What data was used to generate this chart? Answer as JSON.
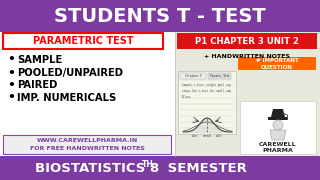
{
  "title": "STUDENTS T - TEST",
  "title_bg": "#7B3BA0",
  "title_color": "#FFFFFF",
  "parametric_label": "PARAMETRIC TEST",
  "parametric_bg": "#FFFFFF",
  "parametric_border": "#FF0000",
  "parametric_text_color": "#FF0000",
  "chapter_label": "P1 CHAPTER 3 UNIT 2",
  "chapter_bg": "#DD1111",
  "chapter_text_color": "#FFFFFF",
  "handwritten_label": "+ HANDWRITTEN NOTES",
  "handwritten_color": "#000000",
  "important_label": "# IMPORTANT\nQUESTION",
  "important_bg": "#FF6600",
  "important_text_color": "#FFFFFF",
  "bullet_items": [
    "SAMPLE",
    "POOLED/UNPAIRED",
    "PAIRED",
    "IMP. NUMERICALS"
  ],
  "bullet_color": "#000000",
  "website_line1": "WWW.CAREWELLPHARMA.IN",
  "website_line2": "FOR FREE HANDWRITTEN NOTES",
  "website_bg": "#EEEEEE",
  "website_border": "#8844AA",
  "website_color": "#7B3BA0",
  "bottom_bg": "#7B3BA0",
  "bottom_color": "#FFFFFF",
  "right_panel_bg": "#E8E8DC",
  "white": "#FFFFFF",
  "notepad_bg": "#F5F5E8",
  "logo_bg": "#FFFFFF",
  "logo_border": "#CCCCCC"
}
